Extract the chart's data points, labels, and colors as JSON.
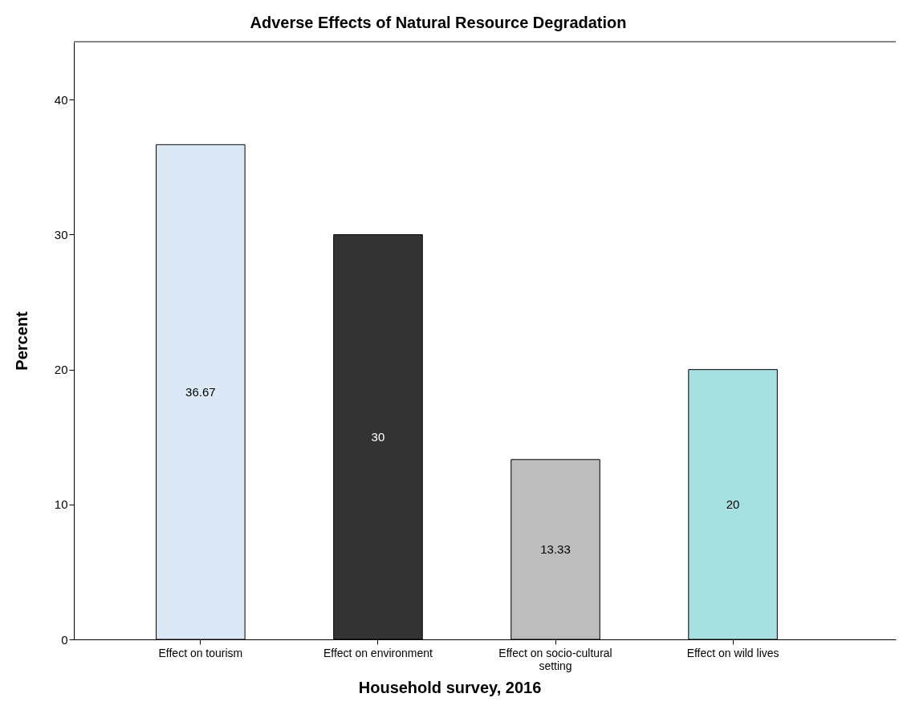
{
  "chart_data": {
    "type": "bar",
    "title": "Adverse Effects of Natural Resource Degradation",
    "xlabel": "Household survey, 2016",
    "ylabel": "Percent",
    "categories": [
      "Effect on tourism",
      "Effect on environment",
      "Effect on socio-cultural setting",
      "Effect on wild lives"
    ],
    "values": [
      36.67,
      30,
      13.33,
      20
    ],
    "colors": [
      "#dbe8f5",
      "#333333",
      "#bdbdbd",
      "#a6e0e0"
    ],
    "ylim": [
      0,
      44.3
    ],
    "yticks": [
      0,
      10,
      20,
      30,
      40
    ],
    "data_labels": true,
    "grid": false
  }
}
